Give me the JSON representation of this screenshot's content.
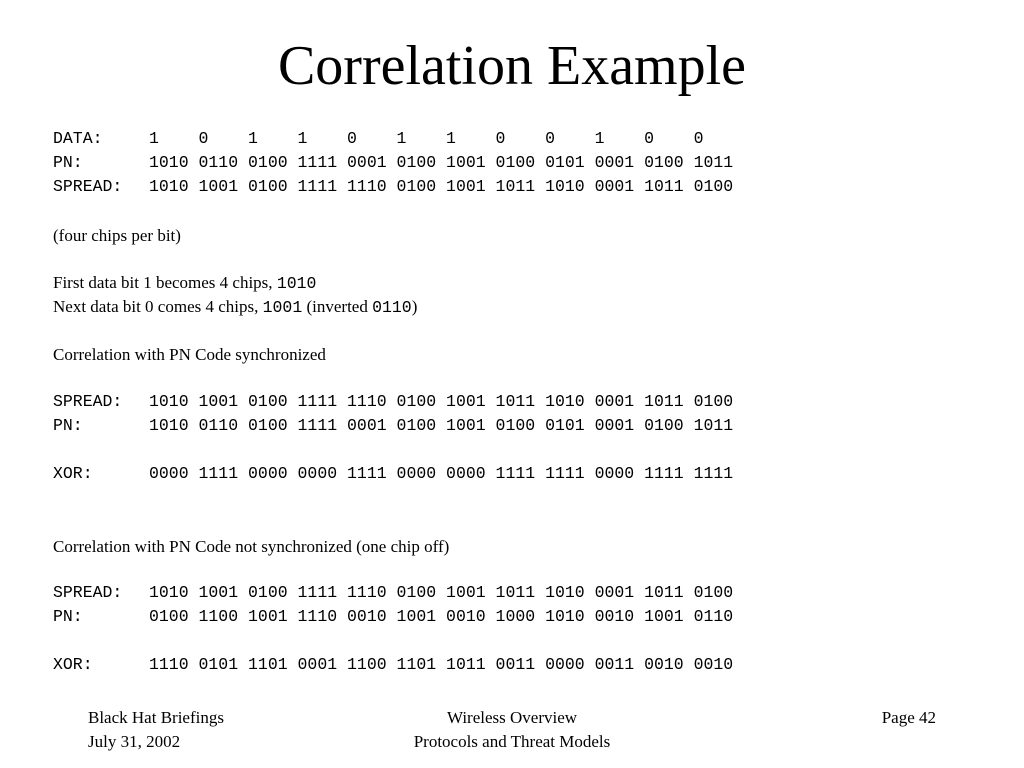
{
  "title": "Correlation Example",
  "block1": {
    "data_label": "DATA:",
    "data_value": "1    0    1    1    0    1    1    0    0    1    0    0",
    "pn_label": "PN:",
    "pn_value": "1010 0110 0100 1111 0001 0100 1001 0100 0101 0001 0100 1011",
    "spread_label": "SPREAD:",
    "spread_value": "1010 1001 0100 1111 1110 0100 1001 1011 1010 0001 1011 0100"
  },
  "note_chips": "(four chips per bit)",
  "first_bit": {
    "text": "First data bit 1 becomes 4 chips, ",
    "code": "1010"
  },
  "next_bit": {
    "text": "Next data bit 0 comes 4 chips, ",
    "code": "1001",
    "mid": " (inverted ",
    "code2": "0110",
    "end": ")"
  },
  "sync_heading": "Correlation with PN Code synchronized",
  "sync": {
    "spread_label": "SPREAD:",
    "spread_value": "1010 1001 0100 1111 1110 0100 1001 1011 1010 0001 1011 0100",
    "pn_label": "PN:",
    "pn_value": "1010 0110 0100 1111 0001 0100 1001 0100 0101 0001 0100 1011",
    "xor_label": "XOR:",
    "xor_value": "0000 1111 0000 0000 1111 0000 0000 1111 1111 0000 1111 1111"
  },
  "unsync_heading": "Correlation with PN Code not synchronized (one chip off)",
  "unsync": {
    "spread_label": "SPREAD:",
    "spread_value": "1010 1001 0100 1111 1110 0100 1001 1011 1010 0001 1011 0100",
    "pn_label": "PN:",
    "pn_value": "0100 1100 1001 1110 0010 1001 0010 1000 1010 0010 1001 0110",
    "xor_label": "XOR:",
    "xor_value": "1110 0101 1101 0001 1100 1101 1011 0011 0000 0011 0010 0010"
  },
  "footer": {
    "left_line1": "Black Hat Briefings",
    "left_line2": "July 31, 2002",
    "center_line1": "Wireless Overview",
    "center_line2": "Protocols and Threat Models",
    "right_line1": "Page 42"
  }
}
